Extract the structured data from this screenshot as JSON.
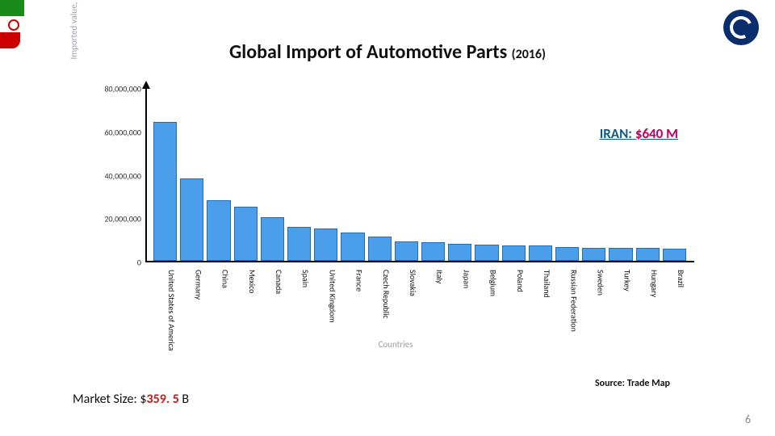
{
  "title_main": "Global Import of Automotive Parts",
  "title_year": "(2016)",
  "chart": {
    "type": "bar",
    "yaxis_title": "Imported value, USD thousand",
    "xaxis_title": "Countries",
    "ylim_max": 80000000,
    "ytick_step": 20000000,
    "yticks": [
      {
        "v": 0,
        "label": "0"
      },
      {
        "v": 20000000,
        "label": "20,000,000"
      },
      {
        "v": 40000000,
        "label": "40,000,000"
      },
      {
        "v": 60000000,
        "label": "60,000,000"
      },
      {
        "v": 80000000,
        "label": "80,000,000"
      }
    ],
    "bar_color": "#4a9eea",
    "bar_border": "#1f6db8",
    "background_color": "#ffffff",
    "categories": [
      "United States of America",
      "Germany",
      "China",
      "Mexico",
      "Canada",
      "Spain",
      "United Kingdom",
      "France",
      "Czech Republic",
      "Slovakia",
      "Italy",
      "Japan",
      "Belgium",
      "Poland",
      "Thailand",
      "Russian Federation",
      "Sweden",
      "Turkey",
      "Hungary",
      "Brazil"
    ],
    "values": [
      64000000,
      38000000,
      28000000,
      25000000,
      20000000,
      15500000,
      15000000,
      13000000,
      11000000,
      9000000,
      8500000,
      8000000,
      7500000,
      7000000,
      7000000,
      6500000,
      6000000,
      6000000,
      6000000,
      5500000
    ]
  },
  "annotation": {
    "prefix": "IRAN: ",
    "value": "$640 M"
  },
  "market_size": {
    "prefix": "Market Size: $",
    "value": "359. 5",
    "suffix": " B"
  },
  "source_label": "Source: Trade Map",
  "page_number": "6",
  "logo": {
    "bg": "#0a2e6b",
    "ring": "#ffffff"
  },
  "flag": {
    "green": "#1a8a1a",
    "white": "#ffffff",
    "red": "#cc0000"
  }
}
